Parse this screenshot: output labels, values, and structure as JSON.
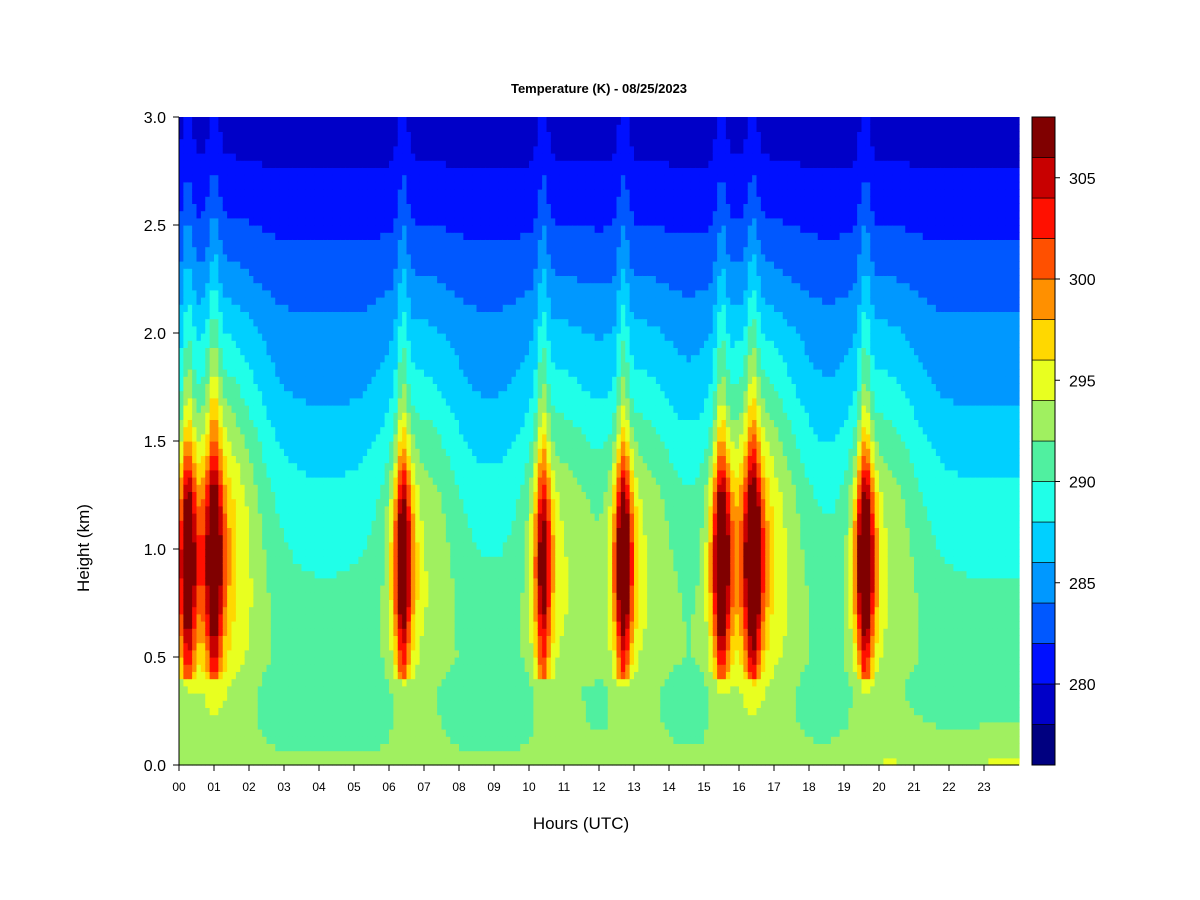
{
  "chart_data": {
    "type": "heatmap",
    "title": "Temperature (K) - 08/25/2023",
    "xlabel": "Hours (UTC)",
    "ylabel": "Height (km)",
    "x_ticks": [
      "00",
      "01",
      "02",
      "03",
      "04",
      "05",
      "06",
      "07",
      "08",
      "09",
      "10",
      "11",
      "12",
      "13",
      "14",
      "15",
      "16",
      "17",
      "18",
      "19",
      "20",
      "21",
      "22",
      "23"
    ],
    "xlim": [
      0,
      24
    ],
    "y_ticks": [
      "0.0",
      "0.5",
      "1.0",
      "1.5",
      "2.0",
      "2.5",
      "3.0"
    ],
    "ylim": [
      0,
      3
    ],
    "colorbar": {
      "levels": [
        276,
        278,
        280,
        282,
        284,
        286,
        288,
        290,
        292,
        294,
        296,
        298,
        300,
        302,
        304,
        306,
        308
      ],
      "tick_labels": [
        "280",
        "285",
        "290",
        "295",
        "300",
        "305"
      ],
      "tick_values": [
        280,
        285,
        290,
        295,
        300,
        305
      ],
      "colors": [
        "#000080",
        "#0000c8",
        "#0010ff",
        "#0058ff",
        "#0098ff",
        "#00d0ff",
        "#20ffe8",
        "#50f0a0",
        "#a0f060",
        "#e8ff20",
        "#ffd800",
        "#ff9000",
        "#ff5000",
        "#ff1000",
        "#c80000",
        "#800000"
      ]
    },
    "background": {
      "heights": [
        0,
        0.05,
        0.1,
        0.2,
        0.35,
        0.5,
        0.75,
        1.0,
        1.25,
        1.5,
        1.75,
        2.0,
        2.25,
        2.5,
        2.75,
        3.0
      ],
      "temperatures": [
        292.5,
        292.0,
        291.5,
        291.0,
        290.5,
        291.0,
        290.5,
        289.5,
        288.5,
        287.0,
        285.5,
        284.5,
        283.0,
        281.5,
        280.0,
        279.0
      ]
    },
    "warm_plumes": [
      {
        "time": 0.25,
        "peak": 303.5
      },
      {
        "time": 1.0,
        "peak": 301.5
      },
      {
        "time": 6.4,
        "peak": 303.5
      },
      {
        "time": 10.4,
        "peak": 300.5
      },
      {
        "time": 12.7,
        "peak": 304.5
      },
      {
        "time": 15.5,
        "peak": 305.0
      },
      {
        "time": 16.4,
        "peak": 304.0
      },
      {
        "time": 19.6,
        "peak": 306.5
      }
    ]
  }
}
